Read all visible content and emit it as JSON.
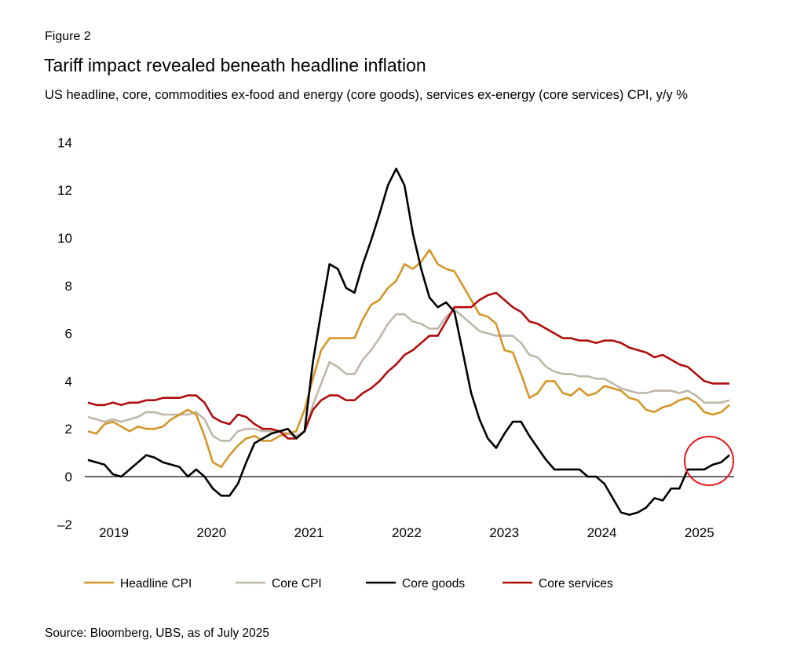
{
  "figure_label": "Figure 2",
  "title": "Tariff impact revealed beneath headline inflation",
  "subtitle": "US headline, core, commodities ex-food and energy (core goods), services ex-energy (core services) CPI, y/y %",
  "source": "Source: Bloomberg, UBS, as of July 2025",
  "chart_data": {
    "type": "line",
    "title": "Tariff impact revealed beneath headline inflation",
    "xlabel": "",
    "ylabel": "",
    "ylim": [
      -2,
      14
    ],
    "y_ticks": [
      "14",
      "12",
      "10",
      "8",
      "6",
      "4",
      "2",
      "0",
      "–2"
    ],
    "y_tick_values": [
      14,
      12,
      10,
      8,
      6,
      4,
      2,
      0,
      -2
    ],
    "x_tick_labels": [
      "2019",
      "2020",
      "2021",
      "2022",
      "2023",
      "2024",
      "2025"
    ],
    "grid": false,
    "legend_position": "bottom",
    "x": [
      "2019-01",
      "2019-02",
      "2019-03",
      "2019-04",
      "2019-05",
      "2019-06",
      "2019-07",
      "2019-08",
      "2019-09",
      "2019-10",
      "2019-11",
      "2019-12",
      "2020-01",
      "2020-02",
      "2020-03",
      "2020-04",
      "2020-05",
      "2020-06",
      "2020-07",
      "2020-08",
      "2020-09",
      "2020-10",
      "2020-11",
      "2020-12",
      "2021-01",
      "2021-02",
      "2021-03",
      "2021-04",
      "2021-05",
      "2021-06",
      "2021-07",
      "2021-08",
      "2021-09",
      "2021-10",
      "2021-11",
      "2021-12",
      "2022-01",
      "2022-02",
      "2022-03",
      "2022-04",
      "2022-05",
      "2022-06",
      "2022-07",
      "2022-08",
      "2022-09",
      "2022-10",
      "2022-11",
      "2022-12",
      "2023-01",
      "2023-02",
      "2023-03",
      "2023-04",
      "2023-05",
      "2023-06",
      "2023-07",
      "2023-08",
      "2023-09",
      "2023-10",
      "2023-11",
      "2023-12",
      "2024-01",
      "2024-02",
      "2024-03",
      "2024-04",
      "2024-05",
      "2024-06",
      "2024-07",
      "2024-08",
      "2024-09",
      "2024-10",
      "2024-11",
      "2024-12",
      "2025-01",
      "2025-02",
      "2025-03",
      "2025-04",
      "2025-05",
      "2025-06"
    ],
    "series": [
      {
        "name": "Headline CPI",
        "color": "#D4962A",
        "values": [
          1.9,
          1.8,
          2.2,
          2.3,
          2.1,
          1.9,
          2.1,
          2.0,
          2.0,
          2.1,
          2.4,
          2.6,
          2.8,
          2.6,
          1.7,
          0.6,
          0.4,
          0.9,
          1.3,
          1.6,
          1.7,
          1.5,
          1.5,
          1.7,
          1.8,
          1.9,
          2.8,
          4.1,
          5.3,
          5.8,
          5.8,
          5.8,
          5.8,
          6.6,
          7.2,
          7.4,
          7.9,
          8.2,
          8.9,
          8.7,
          9.0,
          9.5,
          8.9,
          8.7,
          8.6,
          8.0,
          7.4,
          6.8,
          6.7,
          6.4,
          5.3,
          5.2,
          4.3,
          3.3,
          3.5,
          4.0,
          4.0,
          3.5,
          3.4,
          3.7,
          3.4,
          3.5,
          3.8,
          3.7,
          3.6,
          3.3,
          3.2,
          2.8,
          2.7,
          2.9,
          3.0,
          3.2,
          3.3,
          3.1,
          2.7,
          2.6,
          2.7,
          3.0
        ]
      },
      {
        "name": "Core CPI",
        "color": "#BFB8AA",
        "values": [
          2.5,
          2.4,
          2.3,
          2.4,
          2.3,
          2.4,
          2.5,
          2.7,
          2.7,
          2.6,
          2.6,
          2.6,
          2.6,
          2.7,
          2.4,
          1.7,
          1.5,
          1.5,
          1.9,
          2.0,
          2.0,
          1.9,
          1.9,
          1.9,
          1.8,
          1.7,
          1.9,
          3.0,
          3.9,
          4.8,
          4.6,
          4.3,
          4.3,
          4.9,
          5.3,
          5.8,
          6.4,
          6.8,
          6.8,
          6.5,
          6.4,
          6.2,
          6.2,
          6.7,
          7.0,
          6.7,
          6.4,
          6.1,
          6.0,
          5.9,
          5.9,
          5.9,
          5.6,
          5.1,
          5.0,
          4.6,
          4.4,
          4.3,
          4.3,
          4.2,
          4.2,
          4.1,
          4.1,
          3.9,
          3.7,
          3.6,
          3.5,
          3.5,
          3.6,
          3.6,
          3.6,
          3.5,
          3.6,
          3.4,
          3.1,
          3.1,
          3.1,
          3.2
        ]
      },
      {
        "name": "Core goods",
        "color": "#000000",
        "values": [
          0.7,
          0.6,
          0.5,
          0.1,
          0.0,
          0.3,
          0.6,
          0.9,
          0.8,
          0.6,
          0.5,
          0.4,
          0.0,
          0.3,
          0.0,
          -0.5,
          -0.8,
          -0.8,
          -0.3,
          0.6,
          1.4,
          1.6,
          1.8,
          1.9,
          2.0,
          1.6,
          1.9,
          4.8,
          6.9,
          8.9,
          8.7,
          7.9,
          7.7,
          8.9,
          9.9,
          11.0,
          12.2,
          12.9,
          12.2,
          10.2,
          8.7,
          7.5,
          7.1,
          7.3,
          6.9,
          5.2,
          3.5,
          2.4,
          1.6,
          1.2,
          1.8,
          2.3,
          2.3,
          1.7,
          1.2,
          0.7,
          0.3,
          0.3,
          0.3,
          0.3,
          0.0,
          0.0,
          -0.3,
          -0.9,
          -1.5,
          -1.6,
          -1.5,
          -1.3,
          -0.9,
          -1.0,
          -0.5,
          -0.5,
          0.3,
          0.3,
          0.3,
          0.5,
          0.6,
          0.9
        ]
      },
      {
        "name": "Core services",
        "color": "#B00D0D",
        "values": [
          3.1,
          3.0,
          3.0,
          3.1,
          3.0,
          3.1,
          3.1,
          3.2,
          3.2,
          3.3,
          3.3,
          3.3,
          3.4,
          3.4,
          3.1,
          2.5,
          2.3,
          2.2,
          2.6,
          2.5,
          2.2,
          2.0,
          2.0,
          1.9,
          1.6,
          1.6,
          1.9,
          2.8,
          3.2,
          3.4,
          3.4,
          3.2,
          3.2,
          3.5,
          3.7,
          4.0,
          4.4,
          4.7,
          5.1,
          5.3,
          5.6,
          5.9,
          5.9,
          6.5,
          7.1,
          7.1,
          7.1,
          7.4,
          7.6,
          7.7,
          7.4,
          7.1,
          6.9,
          6.5,
          6.4,
          6.2,
          6.0,
          5.8,
          5.8,
          5.7,
          5.7,
          5.6,
          5.7,
          5.7,
          5.6,
          5.4,
          5.3,
          5.2,
          5.0,
          5.1,
          4.9,
          4.7,
          4.6,
          4.3,
          4.0,
          3.9,
          3.9,
          3.9
        ]
      }
    ],
    "annotations": [
      {
        "type": "circle",
        "color": "#E8141B",
        "target": "Core goods, 2025"
      }
    ]
  }
}
